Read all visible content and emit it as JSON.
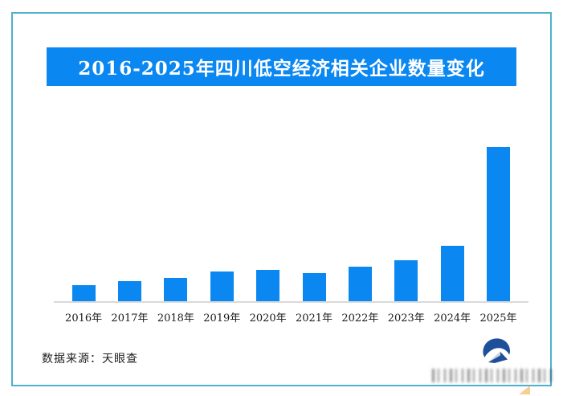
{
  "frame": {
    "border_color": "#4fb0ce",
    "corner_accent_color": "#f0a83c"
  },
  "banner": {
    "title": "2016-2025年四川低空经济相关企业数量变化",
    "bg_color": "#0b87f1",
    "text_color": "#ffffff"
  },
  "chart_data": {
    "type": "bar",
    "title": "2016-2025年四川低空经济相关企业数量变化",
    "categories": [
      "2016年",
      "2017年",
      "2018年",
      "2019年",
      "2020年",
      "2021年",
      "2022年",
      "2023年",
      "2024年",
      "2025年"
    ],
    "values": [
      20,
      25,
      29,
      37,
      39,
      35,
      43,
      51,
      69,
      192
    ],
    "values_unit": "relative (no y-axis or data labels shown; heights estimated in px)",
    "xlabel": "",
    "ylabel": "",
    "bar_color": "#0b87f1",
    "axis_line_color": "#d9d9d9",
    "grid": false,
    "legend": false,
    "y_axis_shown": false
  },
  "footer": {
    "source_label": "数据来源：天眼查"
  },
  "logo": {
    "name": "publisher-logo-swoosh-house",
    "primary_color": "#1d4f9b",
    "secondary_color": "#ccd5de"
  }
}
